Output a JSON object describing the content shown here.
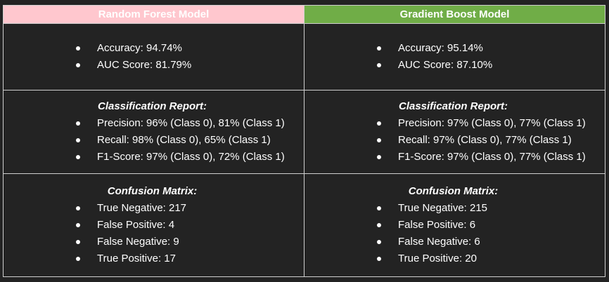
{
  "headers": {
    "left": "Random Forest Model",
    "right": "Gradient Boost Model"
  },
  "colors": {
    "left_header_bg": "#ffc7ce",
    "right_header_bg": "#70ad47",
    "background": "#232323",
    "text": "#ffffff"
  },
  "metrics": {
    "left": [
      "Accuracy: 94.74%",
      "AUC Score: 81.79%"
    ],
    "right": [
      "Accuracy: 95.14%",
      "AUC Score: 87.10%"
    ]
  },
  "report": {
    "title": "Classification Report:",
    "left": [
      "Precision: 96% (Class 0), 81% (Class 1)",
      "Recall: 98% (Class 0), 65% (Class 1)",
      "F1-Score: 97% (Class 0), 72% (Class 1)"
    ],
    "right": [
      "Precision: 97% (Class 0), 77% (Class 1)",
      "Recall: 97% (Class 0), 77% (Class 1)",
      "F1-Score: 97% (Class 0), 77% (Class 1)"
    ]
  },
  "matrix": {
    "title": "Confusion Matrix:",
    "left": [
      "True Negative: 217",
      "False Positive: 4",
      "False Negative: 9",
      "True Positive: 17"
    ],
    "right": [
      "True Negative: 215",
      "False Positive: 6",
      "False Negative: 6",
      "True Positive: 20"
    ]
  }
}
